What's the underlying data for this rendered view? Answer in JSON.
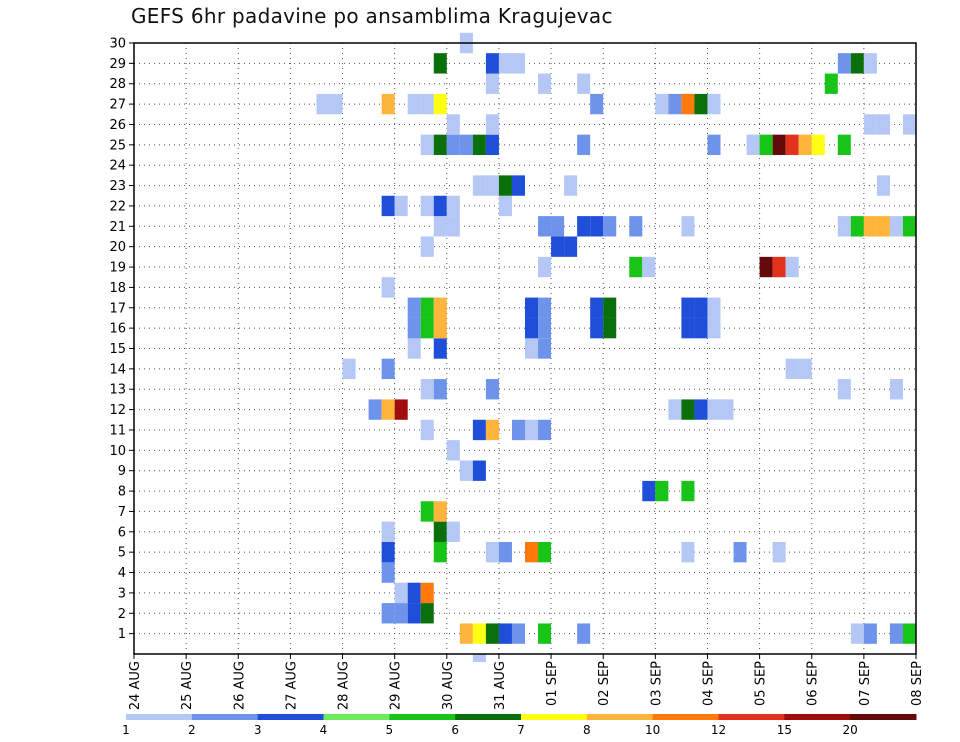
{
  "chart_data": {
    "type": "heatmap",
    "title": "GEFS 6hr padavine po ansamblima Kragujevac",
    "x_ticks": [
      "24 AUG",
      "25 AUG",
      "26 AUG",
      "27 AUG",
      "28 AUG",
      "29 AUG",
      "30 AUG",
      "31 AUG",
      "01 SEP",
      "02 SEP",
      "03 SEP",
      "04 SEP",
      "05 SEP",
      "06 SEP",
      "07 SEP",
      "08 SEP"
    ],
    "x_range": [
      0,
      60
    ],
    "y_ticks": [
      1,
      2,
      3,
      4,
      5,
      6,
      7,
      8,
      9,
      10,
      11,
      12,
      13,
      14,
      15,
      16,
      17,
      18,
      19,
      20,
      21,
      22,
      23,
      24,
      25,
      26,
      27,
      28,
      29,
      30
    ],
    "y_range": [
      0,
      30
    ],
    "grid": true,
    "colorbar": {
      "labels": [
        "1",
        "2",
        "3",
        "4",
        "5",
        "6",
        "7",
        "8",
        "10",
        "12",
        "15",
        "20"
      ],
      "colors": [
        "#b4c7f5",
        "#6d94ea",
        "#1f4fd8",
        "#6fea5a",
        "#18c418",
        "#0b700b",
        "#ffff14",
        "#ffb43c",
        "#ff7a0a",
        "#e3321b",
        "#a00d0d",
        "#640a0a"
      ]
    },
    "cells": [
      [
        1,
        25,
        8
      ],
      [
        1,
        26,
        7
      ],
      [
        1,
        27,
        6
      ],
      [
        1,
        28,
        3
      ],
      [
        1,
        29,
        2
      ],
      [
        1,
        31,
        5
      ],
      [
        1,
        34,
        2
      ],
      [
        1,
        55,
        1
      ],
      [
        1,
        56,
        2
      ],
      [
        1,
        58,
        2
      ],
      [
        1,
        59,
        5
      ],
      [
        2,
        19,
        2
      ],
      [
        2,
        20,
        2
      ],
      [
        2,
        21,
        3
      ],
      [
        2,
        22,
        6
      ],
      [
        3,
        20,
        1
      ],
      [
        3,
        21,
        3
      ],
      [
        3,
        22,
        9
      ],
      [
        4,
        19,
        2
      ],
      [
        5,
        19,
        3
      ],
      [
        5,
        23,
        5
      ],
      [
        5,
        27,
        1
      ],
      [
        5,
        28,
        2
      ],
      [
        5,
        30,
        9
      ],
      [
        5,
        31,
        5
      ],
      [
        5,
        42,
        1
      ],
      [
        5,
        46,
        2
      ],
      [
        5,
        49,
        1
      ],
      [
        6,
        19,
        1
      ],
      [
        6,
        23,
        6
      ],
      [
        6,
        24,
        1
      ],
      [
        7,
        22,
        5
      ],
      [
        7,
        23,
        8
      ],
      [
        8,
        39,
        3
      ],
      [
        8,
        40,
        5
      ],
      [
        8,
        42,
        5
      ],
      [
        9,
        25,
        1
      ],
      [
        9,
        26,
        3
      ],
      [
        10,
        24,
        1
      ],
      [
        11,
        22,
        1
      ],
      [
        11,
        26,
        3
      ],
      [
        11,
        27,
        8
      ],
      [
        11,
        29,
        2
      ],
      [
        11,
        30,
        1
      ],
      [
        11,
        31,
        2
      ],
      [
        12,
        18,
        2
      ],
      [
        12,
        19,
        8
      ],
      [
        12,
        20,
        11
      ],
      [
        12,
        41,
        1
      ],
      [
        12,
        42,
        6
      ],
      [
        12,
        43,
        3
      ],
      [
        12,
        44,
        1
      ],
      [
        12,
        45,
        1
      ],
      [
        13,
        22,
        1
      ],
      [
        13,
        23,
        2
      ],
      [
        13,
        27,
        2
      ],
      [
        13,
        54,
        1
      ],
      [
        13,
        58,
        1
      ],
      [
        14,
        16,
        1
      ],
      [
        14,
        19,
        2
      ],
      [
        14,
        50,
        1
      ],
      [
        14,
        51,
        1
      ],
      [
        15,
        21,
        1
      ],
      [
        15,
        23,
        3
      ],
      [
        15,
        30,
        1
      ],
      [
        15,
        31,
        2
      ],
      [
        16,
        21,
        2
      ],
      [
        16,
        22,
        5
      ],
      [
        16,
        23,
        8
      ],
      [
        16,
        30,
        3
      ],
      [
        16,
        31,
        2
      ],
      [
        16,
        35,
        3
      ],
      [
        16,
        36,
        6
      ],
      [
        16,
        42,
        3
      ],
      [
        16,
        43,
        3
      ],
      [
        16,
        44,
        1
      ],
      [
        17,
        21,
        2
      ],
      [
        17,
        22,
        5
      ],
      [
        17,
        23,
        8
      ],
      [
        17,
        30,
        3
      ],
      [
        17,
        31,
        2
      ],
      [
        17,
        35,
        3
      ],
      [
        17,
        36,
        6
      ],
      [
        17,
        42,
        3
      ],
      [
        17,
        43,
        3
      ],
      [
        17,
        44,
        1
      ],
      [
        18,
        19,
        1
      ],
      [
        19,
        31,
        1
      ],
      [
        19,
        38,
        5
      ],
      [
        19,
        39,
        1
      ],
      [
        19,
        48,
        12
      ],
      [
        19,
        49,
        10
      ],
      [
        19,
        50,
        1
      ],
      [
        20,
        22,
        1
      ],
      [
        20,
        32,
        3
      ],
      [
        20,
        33,
        3
      ],
      [
        21,
        23,
        1
      ],
      [
        21,
        24,
        1
      ],
      [
        21,
        31,
        2
      ],
      [
        21,
        32,
        2
      ],
      [
        21,
        34,
        3
      ],
      [
        21,
        35,
        3
      ],
      [
        21,
        36,
        2
      ],
      [
        21,
        38,
        2
      ],
      [
        21,
        42,
        1
      ],
      [
        21,
        54,
        1
      ],
      [
        21,
        55,
        5
      ],
      [
        21,
        56,
        8
      ],
      [
        21,
        57,
        8
      ],
      [
        21,
        58,
        1
      ],
      [
        21,
        59,
        5
      ],
      [
        22,
        19,
        3
      ],
      [
        22,
        20,
        1
      ],
      [
        22,
        22,
        1
      ],
      [
        22,
        23,
        3
      ],
      [
        22,
        24,
        1
      ],
      [
        22,
        28,
        1
      ],
      [
        23,
        26,
        1
      ],
      [
        23,
        27,
        1
      ],
      [
        23,
        28,
        6
      ],
      [
        23,
        29,
        3
      ],
      [
        23,
        33,
        1
      ],
      [
        23,
        57,
        1
      ],
      [
        25,
        22,
        1
      ],
      [
        25,
        23,
        6
      ],
      [
        25,
        24,
        2
      ],
      [
        25,
        25,
        2
      ],
      [
        25,
        26,
        6
      ],
      [
        25,
        27,
        3
      ],
      [
        25,
        34,
        2
      ],
      [
        25,
        44,
        2
      ],
      [
        25,
        47,
        1
      ],
      [
        25,
        48,
        5
      ],
      [
        25,
        49,
        12
      ],
      [
        25,
        50,
        10
      ],
      [
        25,
        51,
        8
      ],
      [
        25,
        52,
        7
      ],
      [
        25,
        54,
        5
      ],
      [
        26,
        24,
        1
      ],
      [
        26,
        27,
        1
      ],
      [
        26,
        56,
        1
      ],
      [
        26,
        57,
        1
      ],
      [
        26,
        59,
        1
      ],
      [
        27,
        14,
        1
      ],
      [
        27,
        15,
        1
      ],
      [
        27,
        19,
        8
      ],
      [
        27,
        21,
        1
      ],
      [
        27,
        22,
        1
      ],
      [
        27,
        23,
        7
      ],
      [
        27,
        35,
        2
      ],
      [
        27,
        40,
        1
      ],
      [
        27,
        41,
        2
      ],
      [
        27,
        42,
        9
      ],
      [
        27,
        43,
        6
      ],
      [
        27,
        44,
        1
      ],
      [
        28,
        27,
        1
      ],
      [
        28,
        31,
        1
      ],
      [
        28,
        34,
        1
      ],
      [
        28,
        53,
        5
      ],
      [
        29,
        23,
        6
      ],
      [
        29,
        27,
        3
      ],
      [
        29,
        28,
        1
      ],
      [
        29,
        29,
        1
      ],
      [
        29,
        54,
        2
      ],
      [
        29,
        55,
        6
      ],
      [
        29,
        56,
        1
      ],
      [
        30,
        25,
        1
      ],
      [
        0,
        26,
        1
      ]
    ]
  }
}
